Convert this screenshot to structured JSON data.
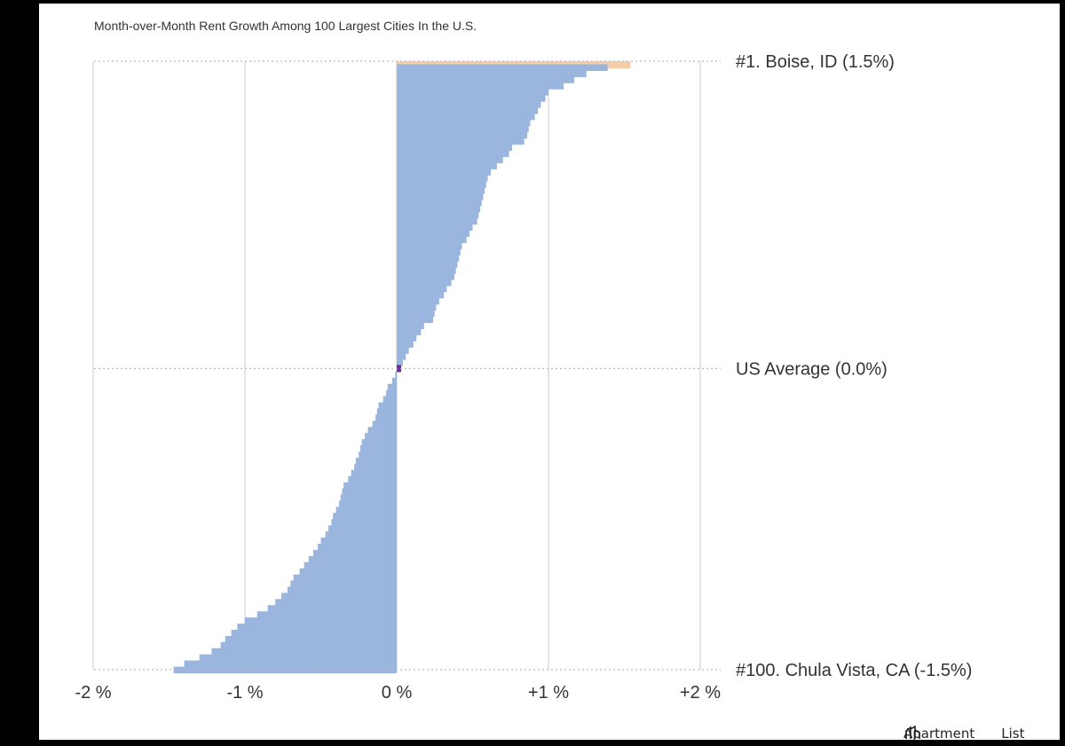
{
  "chart_data": {
    "type": "bar",
    "orientation": "horizontal",
    "title": "Month-over-Month Rent Growth Among 100 Largest Cities In the U.S.",
    "xlim": [
      -2,
      2
    ],
    "x_ticks": [
      "-2 %",
      "-1 %",
      "0 %",
      "+1 %",
      "+2 %"
    ],
    "x_tick_values": [
      -2,
      -1,
      0,
      1,
      2
    ],
    "annotations": [
      {
        "label": "#1. Boise, ID (1.5%)",
        "rank": 1
      },
      {
        "label": "US Average (0.0%)",
        "rank": 51
      },
      {
        "label": "#100. Chula Vista, CA (-1.5%)",
        "rank": 100
      }
    ],
    "highlight_color": "#f5cda8",
    "bar_color": "#9ab5de",
    "average_color": "#6a2c9c",
    "grid": true,
    "values": [
      1.54,
      1.39,
      1.25,
      1.17,
      1.1,
      1.0,
      0.98,
      0.95,
      0.93,
      0.91,
      0.88,
      0.87,
      0.86,
      0.84,
      0.76,
      0.74,
      0.7,
      0.66,
      0.62,
      0.6,
      0.59,
      0.58,
      0.57,
      0.56,
      0.55,
      0.54,
      0.53,
      0.5,
      0.48,
      0.46,
      0.43,
      0.42,
      0.41,
      0.4,
      0.39,
      0.38,
      0.36,
      0.33,
      0.31,
      0.28,
      0.26,
      0.25,
      0.24,
      0.18,
      0.16,
      0.13,
      0.11,
      0.08,
      0.06,
      0.04,
      0.0,
      -0.01,
      -0.03,
      -0.06,
      -0.07,
      -0.09,
      -0.12,
      -0.13,
      -0.14,
      -0.16,
      -0.19,
      -0.21,
      -0.23,
      -0.24,
      -0.25,
      -0.27,
      -0.28,
      -0.3,
      -0.32,
      -0.35,
      -0.36,
      -0.37,
      -0.38,
      -0.4,
      -0.42,
      -0.43,
      -0.45,
      -0.47,
      -0.5,
      -0.52,
      -0.55,
      -0.58,
      -0.61,
      -0.64,
      -0.68,
      -0.7,
      -0.72,
      -0.76,
      -0.8,
      -0.85,
      -0.92,
      -1.0,
      -1.05,
      -1.09,
      -1.13,
      -1.16,
      -1.22,
      -1.3,
      -1.4,
      -1.47
    ]
  },
  "brand": {
    "name_left": "Apartment",
    "name_right": "List"
  }
}
